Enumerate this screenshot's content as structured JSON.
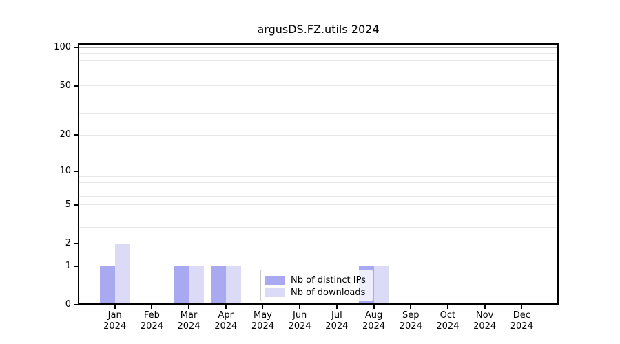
{
  "chart_data": {
    "type": "bar",
    "title": "argusDS.FZ.utils 2024",
    "months": [
      "Jan",
      "Feb",
      "Mar",
      "Apr",
      "May",
      "Jun",
      "Jul",
      "Aug",
      "Sep",
      "Oct",
      "Nov",
      "Dec"
    ],
    "year": "2024",
    "series": [
      {
        "name": "Nb of distinct IPs",
        "color": "#a9a9f2",
        "values": [
          1,
          0,
          1,
          1,
          0,
          0,
          0,
          1,
          0,
          0,
          0,
          0
        ]
      },
      {
        "name": "Nb of downloads",
        "color": "#dbdbf8",
        "values": [
          2,
          0,
          1,
          1,
          0,
          0,
          0,
          1,
          0,
          0,
          0,
          0
        ]
      }
    ],
    "yscale": "log1p",
    "ylim": [
      0,
      108
    ],
    "ytick_values": [
      0,
      1,
      2,
      5,
      10,
      20,
      50,
      100
    ],
    "gridlines": {
      "major": [
        1,
        10,
        100
      ],
      "minor": [
        2,
        3,
        4,
        5,
        6,
        7,
        8,
        9,
        20,
        30,
        40,
        50,
        60,
        70,
        80,
        90
      ]
    },
    "legend": {
      "location": "lower center",
      "entries": [
        "Nb of distinct IPs",
        "Nb of downloads"
      ]
    },
    "xlabel": "",
    "ylabel": ""
  },
  "colors": {
    "spine": "#000000",
    "grid_major": "#b2b2b2",
    "grid_minor": "#e7e7e7",
    "background": "#ffffff",
    "legend_border": "#c9c9c9",
    "text": "#000000"
  }
}
